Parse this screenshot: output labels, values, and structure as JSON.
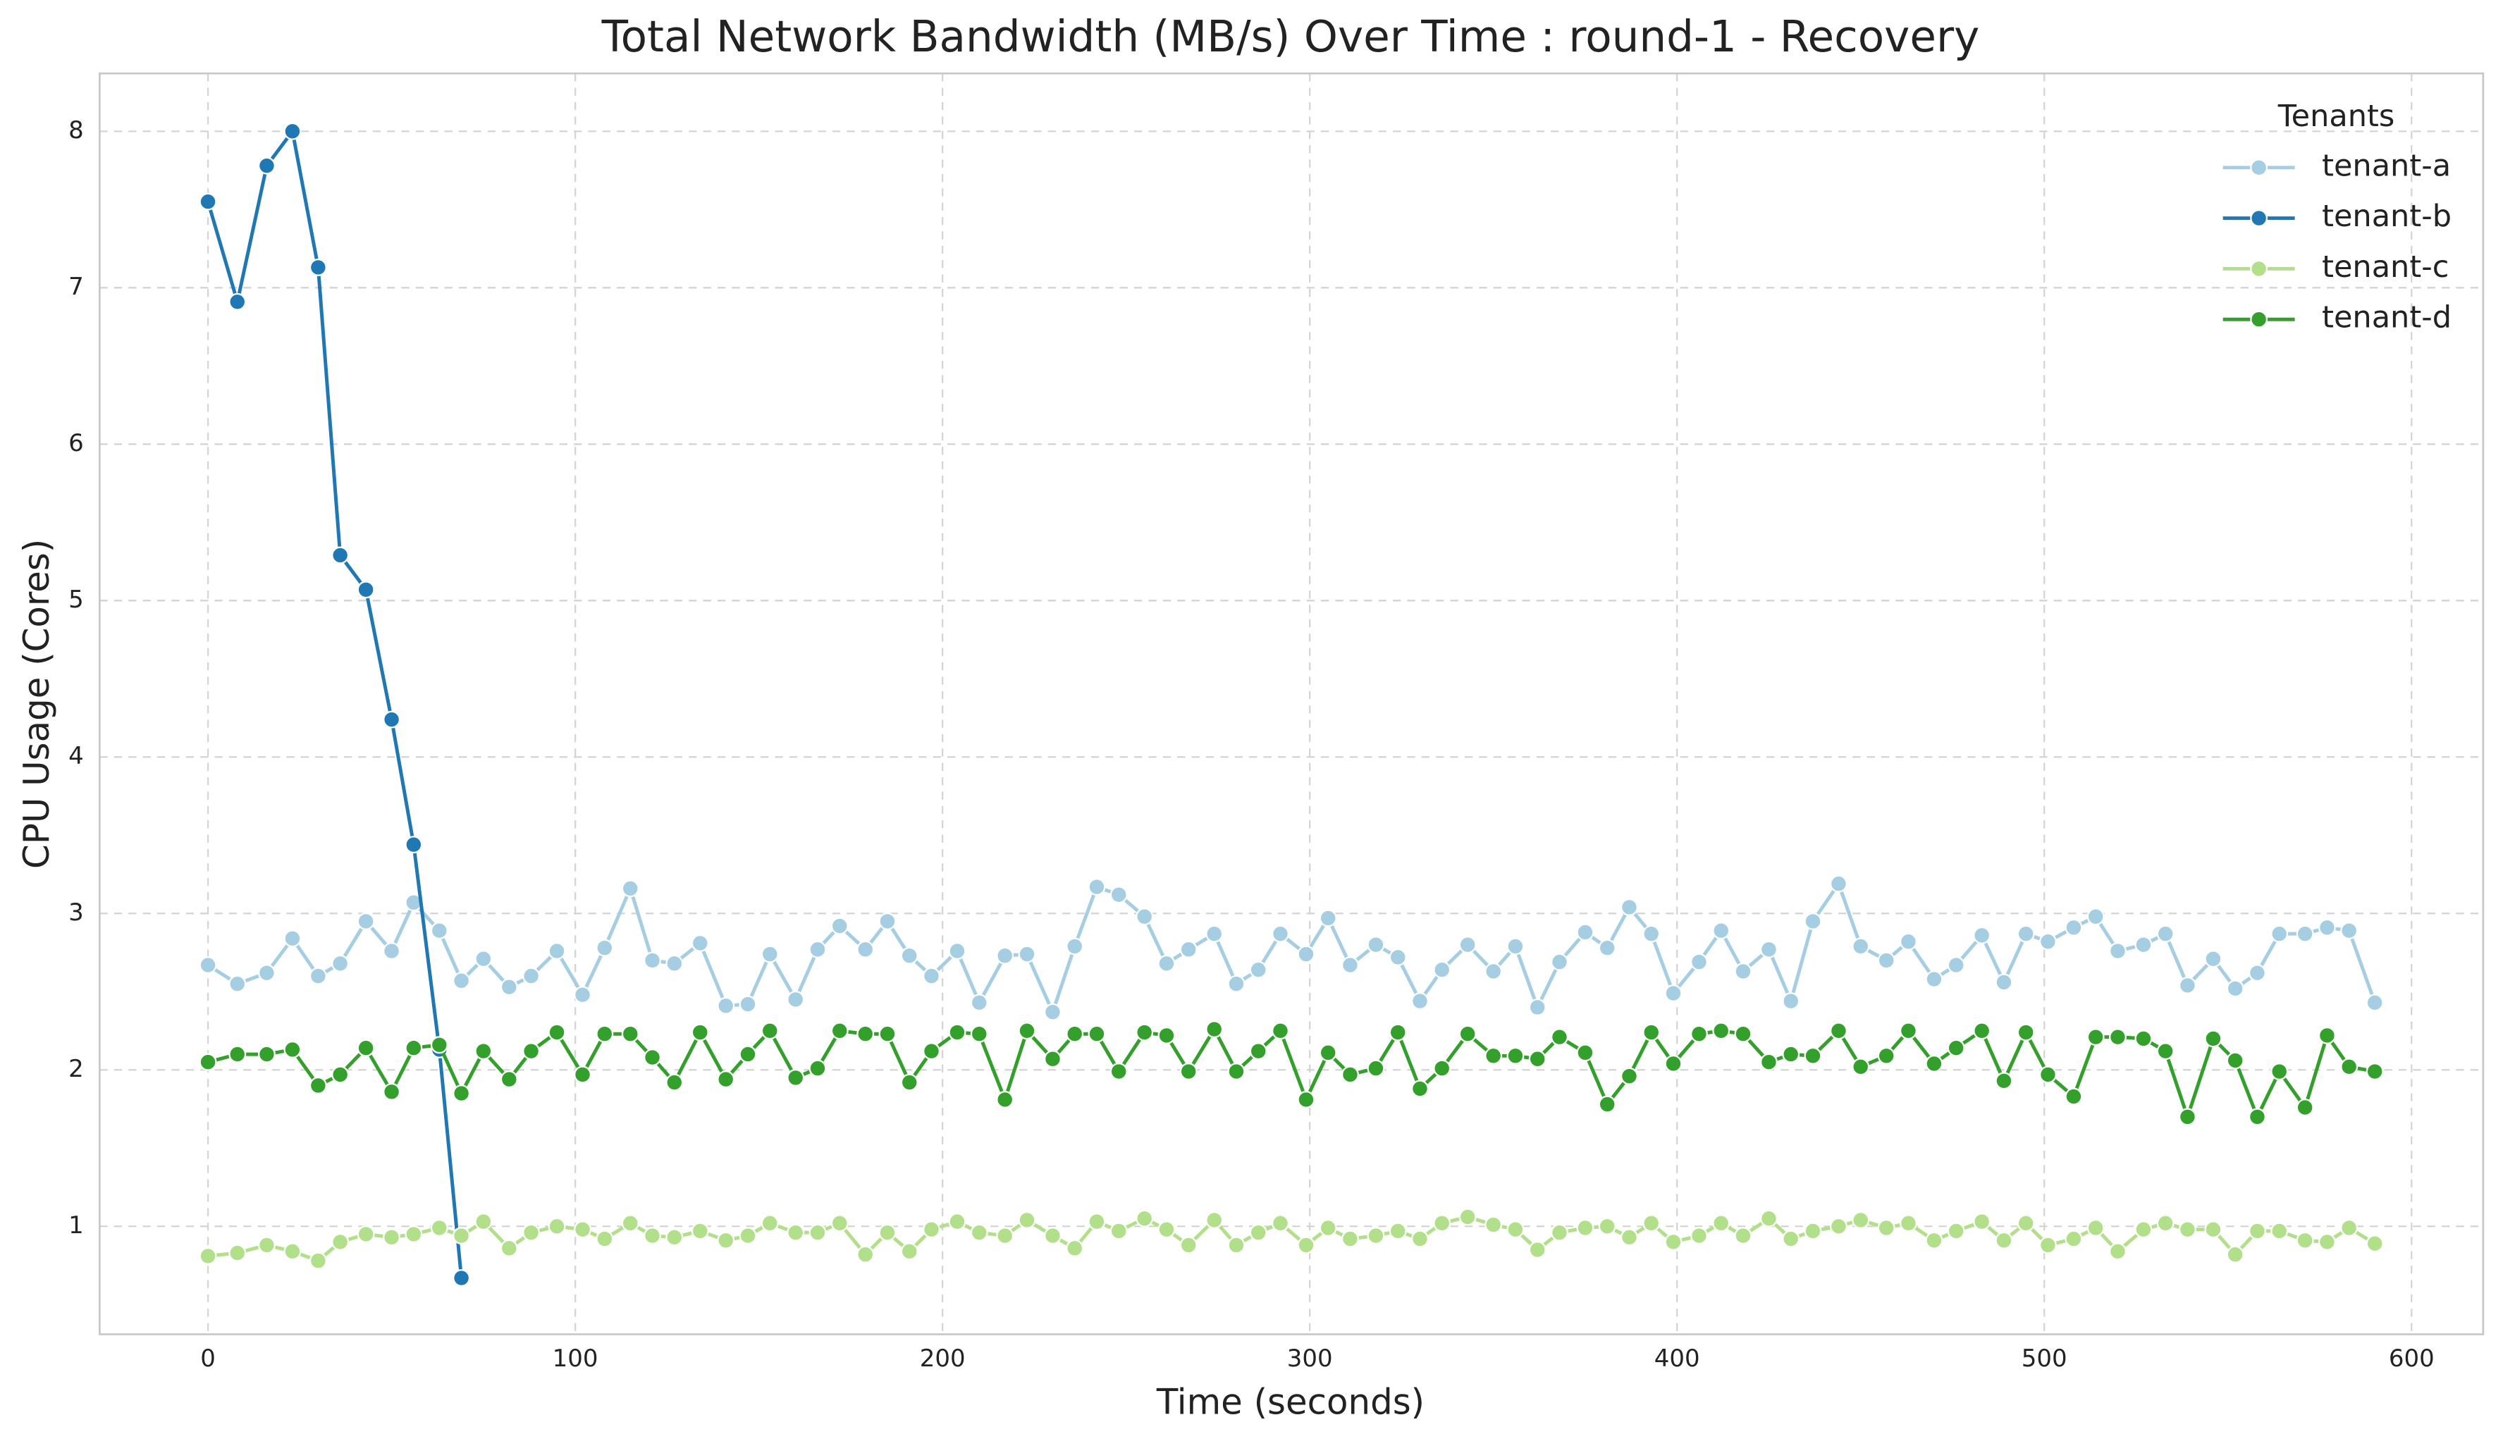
{
  "chart_data": {
    "type": "line",
    "title": "Total Network Bandwidth (MB/s) Over Time : round-1 - Recovery",
    "x_label": "Time (seconds)",
    "y_label": "CPU Usage (Cores)",
    "legend_title": "Tenants",
    "legend": "upper right",
    "grid": true,
    "xlim": [
      -29.5,
      619.5
    ],
    "ylim": [
      0.31,
      8.37
    ],
    "xticks": [
      0,
      100,
      200,
      300,
      400,
      500,
      600
    ],
    "yticks": [
      1,
      2,
      3,
      4,
      5,
      6,
      7,
      8
    ],
    "x": [
      0,
      8,
      16,
      23,
      30,
      36,
      43,
      50,
      56,
      63,
      69,
      75,
      82,
      88,
      95,
      102,
      108,
      115,
      121,
      127,
      134,
      141,
      147,
      153,
      160,
      166,
      172,
      179,
      185,
      191,
      197,
      204,
      210,
      217,
      223,
      230,
      236,
      242,
      248,
      255,
      261,
      267,
      274,
      280,
      286,
      292,
      299,
      305,
      311,
      318,
      324,
      330,
      336,
      343,
      350,
      356,
      362,
      368,
      375,
      381,
      387,
      393,
      399,
      406,
      412,
      418,
      425,
      431,
      437,
      444,
      450,
      457,
      463,
      470,
      476,
      483,
      489,
      495,
      501,
      508,
      514,
      520,
      527,
      533,
      539,
      546,
      552,
      558,
      564,
      571,
      577,
      583,
      590
    ],
    "series": [
      {
        "name": "tenant-a",
        "color": "#a6cee3",
        "values": [
          2.67,
          2.55,
          2.62,
          2.84,
          2.6,
          2.68,
          2.95,
          2.76,
          3.07,
          2.89,
          2.57,
          2.71,
          2.53,
          2.6,
          2.76,
          2.48,
          2.78,
          3.16,
          2.7,
          2.68,
          2.81,
          2.41,
          2.42,
          2.74,
          2.45,
          2.77,
          2.92,
          2.77,
          2.95,
          2.73,
          2.6,
          2.76,
          2.43,
          2.73,
          2.74,
          2.37,
          2.79,
          3.17,
          3.12,
          2.98,
          2.68,
          2.77,
          2.87,
          2.55,
          2.64,
          2.87,
          2.74,
          2.97,
          2.67,
          2.8,
          2.72,
          2.44,
          2.64,
          2.8,
          2.63,
          2.79,
          2.4,
          2.69,
          2.88,
          2.78,
          3.04,
          2.87,
          2.49,
          2.69,
          2.89,
          2.63,
          2.77,
          2.44,
          2.95,
          3.19,
          2.79,
          2.7,
          2.82,
          2.58,
          2.67,
          2.86,
          2.56,
          2.87,
          2.82,
          2.91,
          2.98,
          2.76,
          2.8,
          2.87,
          2.54,
          2.71,
          2.52,
          2.62,
          2.87,
          2.87,
          2.91,
          2.89,
          2.43
        ]
      },
      {
        "name": "tenant-b",
        "color": "#1f78b4",
        "values": [
          7.55,
          6.91,
          7.78,
          8.0,
          7.13,
          5.29,
          5.07,
          4.24,
          3.44,
          2.13,
          0.67,
          null,
          null,
          null,
          null,
          null,
          null,
          null,
          null,
          null,
          null,
          null,
          null,
          null,
          null,
          null,
          null,
          null,
          null,
          null,
          null,
          null,
          null,
          null,
          null,
          null,
          null,
          null,
          null,
          null,
          null,
          null,
          null,
          null,
          null,
          null,
          null,
          null,
          null,
          null,
          null,
          null,
          null,
          null,
          null,
          null,
          null,
          null,
          null,
          null,
          null,
          null,
          null,
          null,
          null,
          null,
          null,
          null,
          null,
          null,
          null,
          null,
          null,
          null,
          null,
          null,
          null,
          null,
          null,
          null,
          null,
          null,
          null,
          null,
          null,
          null,
          null,
          null,
          null,
          null,
          null,
          null,
          null
        ]
      },
      {
        "name": "tenant-c",
        "color": "#b2df8a",
        "values": [
          0.81,
          0.83,
          0.88,
          0.84,
          0.78,
          0.9,
          0.95,
          0.93,
          0.95,
          0.99,
          0.94,
          1.03,
          0.86,
          0.96,
          1.0,
          0.98,
          0.92,
          1.02,
          0.94,
          0.93,
          0.97,
          0.91,
          0.94,
          1.02,
          0.96,
          0.96,
          1.02,
          0.82,
          0.96,
          0.84,
          0.98,
          1.03,
          0.96,
          0.94,
          1.04,
          0.94,
          0.86,
          1.03,
          0.97,
          1.05,
          0.98,
          0.88,
          1.04,
          0.88,
          0.96,
          1.02,
          0.88,
          0.99,
          0.92,
          0.94,
          0.97,
          0.92,
          1.02,
          1.06,
          1.01,
          0.98,
          0.85,
          0.96,
          0.99,
          1.0,
          0.93,
          1.02,
          0.9,
          0.94,
          1.02,
          0.94,
          1.05,
          0.92,
          0.97,
          1.0,
          1.04,
          0.99,
          1.02,
          0.91,
          0.97,
          1.03,
          0.91,
          1.02,
          0.88,
          0.92,
          0.99,
          0.84,
          0.98,
          1.02,
          0.98,
          0.98,
          0.82,
          0.97,
          0.97,
          0.91,
          0.9,
          0.99,
          0.89
        ]
      },
      {
        "name": "tenant-d",
        "color": "#33a02c",
        "values": [
          2.05,
          2.1,
          2.1,
          2.13,
          1.9,
          1.97,
          2.14,
          1.86,
          2.14,
          2.16,
          1.85,
          2.12,
          1.94,
          2.12,
          2.24,
          1.97,
          2.23,
          2.23,
          2.08,
          1.92,
          2.24,
          1.94,
          2.1,
          2.25,
          1.95,
          2.01,
          2.25,
          2.23,
          2.23,
          1.92,
          2.12,
          2.24,
          2.23,
          1.81,
          2.25,
          2.07,
          2.23,
          2.23,
          1.99,
          2.24,
          2.22,
          1.99,
          2.26,
          1.99,
          2.12,
          2.25,
          1.81,
          2.11,
          1.97,
          2.01,
          2.24,
          1.88,
          2.01,
          2.23,
          2.09,
          2.09,
          2.07,
          2.21,
          2.11,
          1.78,
          1.96,
          2.24,
          2.04,
          2.23,
          2.25,
          2.23,
          2.05,
          2.1,
          2.09,
          2.25,
          2.02,
          2.09,
          2.25,
          2.04,
          2.14,
          2.25,
          1.93,
          2.24,
          1.97,
          1.83,
          2.21,
          2.21,
          2.2,
          2.12,
          1.7,
          2.2,
          2.06,
          1.7,
          1.99,
          1.76,
          2.22,
          2.02,
          1.99
        ]
      }
    ]
  }
}
